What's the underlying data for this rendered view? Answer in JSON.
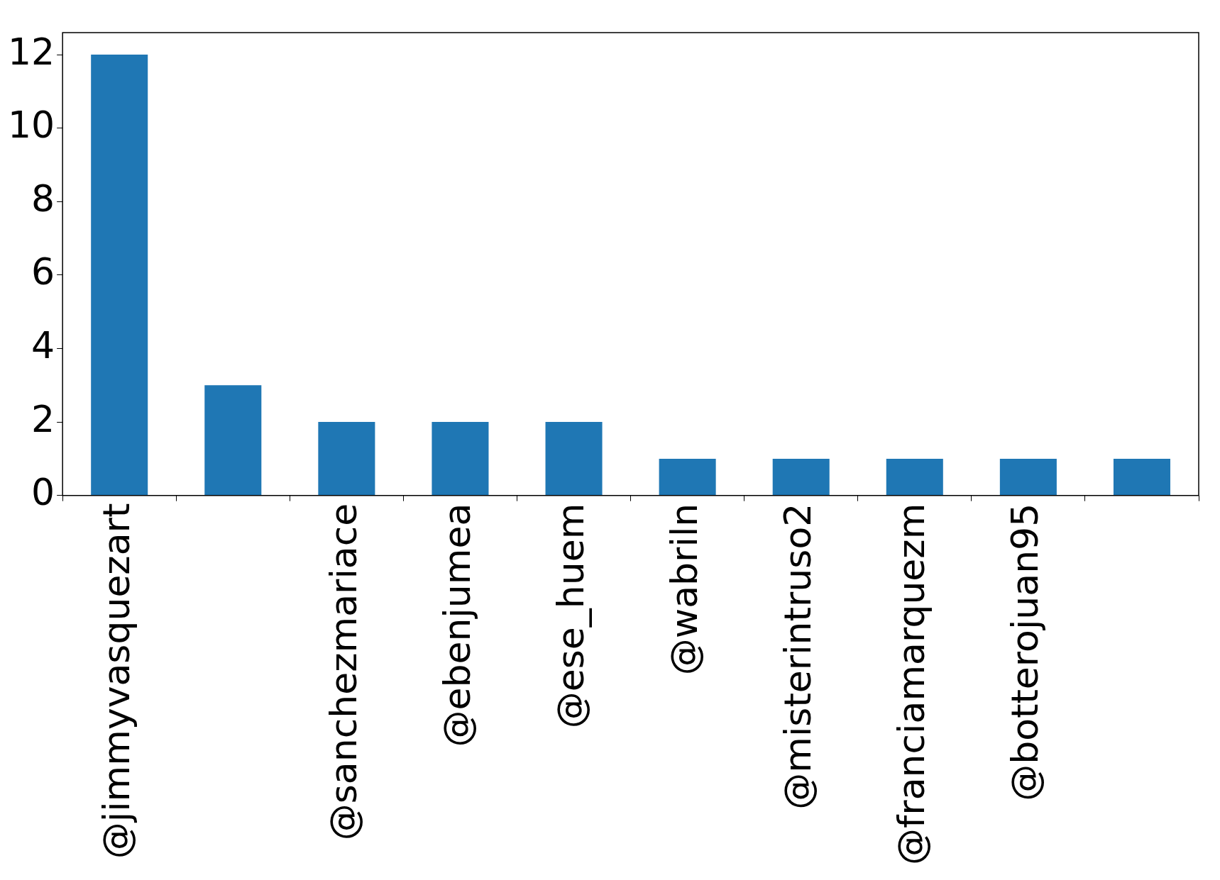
{
  "chart_data": {
    "type": "bar",
    "categories": [
      "@jimmyvasquezart",
      null,
      "@sanchezmariace",
      "@ebenjumea",
      "@ese_huem",
      "@wabriln",
      "@misterintruso2",
      "@franciamarquezm",
      "@botterojuan95",
      null
    ],
    "values": [
      12,
      3,
      2,
      2,
      2,
      1,
      1,
      1,
      1,
      1
    ],
    "color": "#1f77b4",
    "ylim": [
      0,
      12.6
    ],
    "yticks": [
      0,
      2,
      4,
      6,
      8,
      10,
      12
    ],
    "grid": false,
    "legend": false
  }
}
